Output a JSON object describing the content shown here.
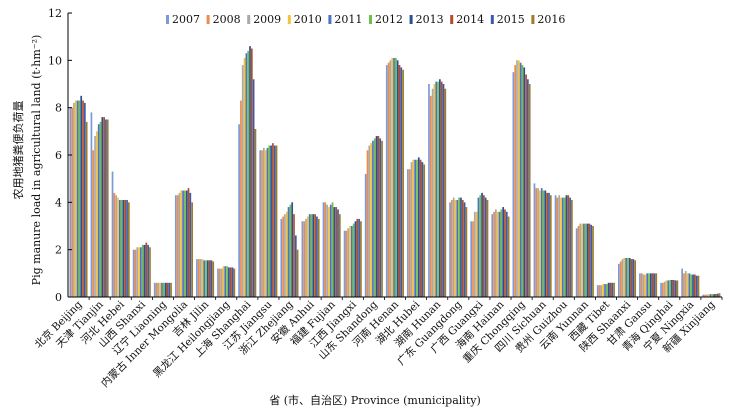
{
  "chart_data": {
    "type": "bar",
    "xlabel": "省 (市、自治区) Province (municipality)",
    "ylabel_cn": "农用地猪粪便负荷量",
    "ylabel_en": "Pig manure load in agricultural land (t·hm⁻²)",
    "ylim": [
      0,
      12
    ],
    "yticks": [
      "0",
      "2",
      "4",
      "6",
      "8",
      "10",
      "12"
    ],
    "legend_position": "top",
    "grid": false,
    "categories": [
      "北京 Beijing",
      "天津 Tianjin",
      "河北 Hebei",
      "山西 Shanxi",
      "辽宁 Liaoning",
      "内蒙古 Inner Mongolia",
      "吉林 Jilin",
      "黑龙江 Heilongjiang",
      "上海 Shanghai",
      "江苏 Jiangsu",
      "浙江 Zhejiang",
      "安徽 Anhui",
      "福建 Fujian",
      "江西 Jiangxi",
      "山东 Shandong",
      "河南 Henan",
      "湖北 Hubei",
      "湖南 Hunan",
      "广东 Guangdong",
      "广西 Guangxi",
      "海南 Hainan",
      "重庆 Chongqing",
      "四川 Sichuan",
      "贵州 Guizhou",
      "云南 Yunnan",
      "西藏 Tibet",
      "陕西 Shaanxi",
      "甘肃 Gansu",
      "青海 Qinghai",
      "宁夏 Ningxia",
      "新疆 Xinjiang"
    ],
    "series": [
      {
        "name": "2007",
        "color": "#7b9bd8",
        "values": [
          8.0,
          7.8,
          5.3,
          2.0,
          0.6,
          4.3,
          1.6,
          1.2,
          7.3,
          6.2,
          3.3,
          3.2,
          4.0,
          2.8,
          5.2,
          9.8,
          5.4,
          9.0,
          4.0,
          3.2,
          3.5,
          9.5,
          4.8,
          4.3,
          2.9,
          0.5,
          1.4,
          1.0,
          0.6,
          1.2,
          0.1
        ]
      },
      {
        "name": "2008",
        "color": "#f08a4b",
        "values": [
          8.0,
          6.2,
          4.4,
          2.0,
          0.6,
          4.3,
          1.6,
          1.2,
          8.3,
          6.2,
          3.4,
          3.2,
          4.0,
          2.8,
          6.2,
          9.9,
          5.4,
          8.5,
          4.1,
          3.2,
          3.6,
          9.8,
          4.6,
          4.2,
          3.0,
          0.5,
          1.5,
          1.0,
          0.6,
          1.0,
          0.1
        ]
      },
      {
        "name": "2009",
        "color": "#a9a9a9",
        "values": [
          8.2,
          6.8,
          4.3,
          2.1,
          0.6,
          4.4,
          1.6,
          1.2,
          9.8,
          6.3,
          3.5,
          3.3,
          3.9,
          2.9,
          6.4,
          10.0,
          5.7,
          8.8,
          4.2,
          3.6,
          3.7,
          10.0,
          4.6,
          4.3,
          3.1,
          0.5,
          1.6,
          0.95,
          0.65,
          1.1,
          0.1
        ]
      },
      {
        "name": "2010",
        "color": "#f5c23a",
        "values": [
          8.3,
          7.0,
          4.2,
          2.1,
          0.6,
          4.5,
          1.6,
          1.3,
          10.1,
          6.2,
          3.6,
          3.4,
          3.8,
          3.0,
          6.5,
          10.1,
          5.8,
          9.0,
          4.1,
          3.6,
          3.6,
          10.0,
          4.5,
          4.2,
          3.1,
          0.55,
          1.65,
          0.95,
          0.7,
          1.0,
          0.12
        ]
      },
      {
        "name": "2011",
        "color": "#4a73c4",
        "values": [
          8.3,
          7.3,
          4.1,
          2.1,
          0.6,
          4.5,
          1.55,
          1.3,
          10.3,
          6.3,
          3.8,
          3.5,
          3.9,
          3.0,
          6.6,
          10.1,
          5.8,
          9.1,
          4.1,
          4.2,
          3.6,
          9.9,
          4.6,
          4.2,
          3.1,
          0.55,
          1.65,
          1.0,
          0.7,
          1.0,
          0.12
        ]
      },
      {
        "name": "2012",
        "color": "#6fbf4b",
        "values": [
          8.3,
          7.4,
          4.1,
          2.2,
          0.6,
          4.5,
          1.55,
          1.3,
          10.4,
          6.4,
          3.9,
          3.5,
          4.0,
          3.1,
          6.7,
          10.1,
          5.8,
          9.1,
          4.2,
          4.3,
          3.7,
          9.8,
          4.5,
          4.2,
          3.1,
          0.55,
          1.65,
          1.0,
          0.72,
          0.95,
          0.12
        ]
      },
      {
        "name": "2013",
        "color": "#2b4f94",
        "values": [
          8.5,
          7.6,
          4.1,
          2.2,
          0.6,
          4.5,
          1.55,
          1.25,
          10.6,
          6.4,
          4.0,
          3.5,
          3.8,
          3.2,
          6.8,
          10.0,
          5.9,
          9.2,
          4.2,
          4.4,
          3.8,
          9.7,
          4.5,
          4.3,
          3.1,
          0.6,
          1.65,
          1.0,
          0.72,
          0.95,
          0.12
        ]
      },
      {
        "name": "2014",
        "color": "#b24d2b",
        "values": [
          8.3,
          7.6,
          4.1,
          2.3,
          0.6,
          4.6,
          1.55,
          1.25,
          10.5,
          6.5,
          3.5,
          3.5,
          3.8,
          3.3,
          6.8,
          9.8,
          5.8,
          9.1,
          4.1,
          4.3,
          3.7,
          9.4,
          4.4,
          4.3,
          3.1,
          0.6,
          1.6,
          1.0,
          0.72,
          0.95,
          0.13
        ]
      },
      {
        "name": "2015",
        "color": "#3b5ba8",
        "values": [
          8.2,
          7.5,
          4.1,
          2.2,
          0.6,
          4.4,
          1.55,
          1.25,
          9.2,
          6.4,
          2.6,
          3.4,
          3.7,
          3.3,
          6.7,
          9.7,
          5.7,
          9.0,
          4.0,
          4.2,
          3.6,
          9.2,
          4.4,
          4.2,
          3.05,
          0.6,
          1.6,
          1.0,
          0.7,
          0.9,
          0.14
        ]
      },
      {
        "name": "2016",
        "color": "#9c7c2c",
        "values": [
          7.4,
          7.5,
          4.0,
          2.1,
          0.6,
          4.0,
          1.5,
          1.2,
          7.1,
          6.4,
          2.0,
          3.3,
          3.5,
          3.2,
          6.6,
          9.6,
          5.6,
          8.8,
          3.8,
          4.1,
          3.4,
          9.0,
          4.3,
          4.1,
          3.0,
          0.6,
          1.55,
          1.0,
          0.7,
          0.9,
          0.16
        ]
      }
    ]
  }
}
